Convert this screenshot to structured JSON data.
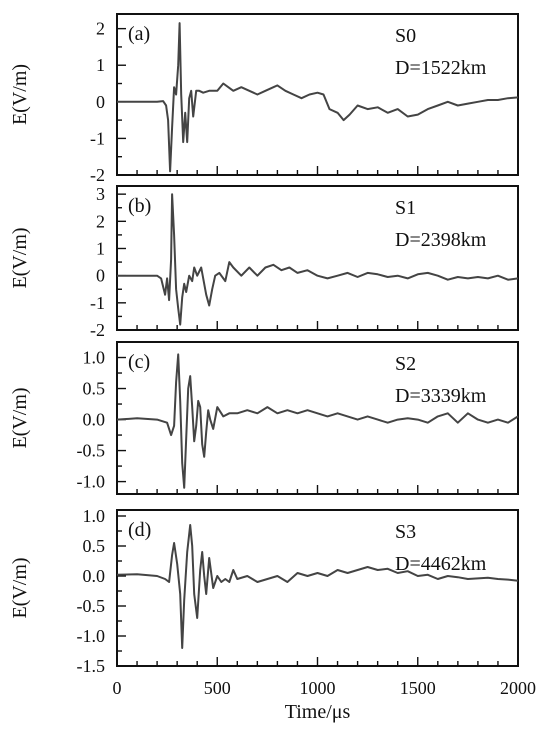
{
  "chart_data": [
    {
      "type": "line",
      "panel_label": "(a)",
      "station": "S0",
      "distance": "D=1522km",
      "ylabel": "E(V/m)",
      "ylim": [
        -2,
        2.4
      ],
      "yticks": [
        -2,
        -1,
        0,
        1,
        2
      ],
      "ytick_labels": [
        "-2",
        "-1",
        "0",
        "1",
        "2"
      ],
      "xlim": [
        0,
        2000
      ],
      "series": [
        {
          "x": [
            0,
            100,
            200,
            230,
            245,
            255,
            265,
            275,
            285,
            295,
            305,
            312,
            320,
            330,
            340,
            350,
            360,
            370,
            380,
            395,
            410,
            430,
            460,
            500,
            530,
            555,
            580,
            620,
            660,
            700,
            740,
            780,
            800,
            840,
            880,
            920,
            960,
            1000,
            1030,
            1060,
            1100,
            1130,
            1160,
            1200,
            1250,
            1300,
            1350,
            1400,
            1450,
            1500,
            1550,
            1600,
            1650,
            1700,
            1750,
            1800,
            1850,
            1900,
            1950,
            2000
          ],
          "y": [
            0,
            0,
            0,
            0.02,
            -0.1,
            -0.5,
            -1.9,
            -0.7,
            0.4,
            0.2,
            1.0,
            2.15,
            0.2,
            -1.1,
            -0.3,
            -1.1,
            0.1,
            0.3,
            -0.4,
            0.3,
            0.3,
            0.25,
            0.3,
            0.3,
            0.5,
            0.4,
            0.3,
            0.4,
            0.3,
            0.2,
            0.3,
            0.4,
            0.45,
            0.3,
            0.2,
            0.1,
            0.2,
            0.25,
            0.2,
            -0.2,
            -0.3,
            -0.5,
            -0.35,
            -0.1,
            -0.2,
            -0.15,
            -0.3,
            -0.2,
            -0.4,
            -0.35,
            -0.2,
            -0.1,
            0.0,
            -0.1,
            -0.05,
            0.0,
            0.05,
            0.05,
            0.1,
            0.12
          ]
        }
      ]
    },
    {
      "type": "line",
      "panel_label": "(b)",
      "station": "S1",
      "distance": "D=2398km",
      "ylabel": "E(V/m)",
      "ylim": [
        -2,
        3.3
      ],
      "yticks": [
        -2,
        -1,
        0,
        1,
        2,
        3
      ],
      "ytick_labels": [
        "-2",
        "-1",
        "0",
        "1",
        "2",
        "3"
      ],
      "xlim": [
        0,
        2000
      ],
      "series": [
        {
          "x": [
            0,
            100,
            200,
            220,
            240,
            250,
            260,
            270,
            275,
            285,
            295,
            305,
            315,
            325,
            335,
            345,
            360,
            375,
            385,
            400,
            420,
            445,
            460,
            475,
            490,
            510,
            540,
            560,
            580,
            620,
            660,
            700,
            740,
            780,
            820,
            860,
            900,
            950,
            1000,
            1050,
            1100,
            1150,
            1200,
            1250,
            1300,
            1350,
            1400,
            1450,
            1500,
            1550,
            1600,
            1650,
            1700,
            1750,
            1800,
            1850,
            1900,
            1950,
            2000
          ],
          "y": [
            0,
            0,
            0,
            -0.1,
            -0.7,
            -0.1,
            -0.9,
            0.6,
            3.0,
            1.5,
            -0.5,
            -1.2,
            -1.8,
            -0.8,
            -0.3,
            -0.6,
            0.0,
            -0.2,
            0.3,
            0.0,
            0.3,
            -0.7,
            -1.1,
            -0.5,
            0.0,
            0.1,
            -0.2,
            0.5,
            0.3,
            0.0,
            0.3,
            0.0,
            0.3,
            0.4,
            0.2,
            0.3,
            0.1,
            0.2,
            0.0,
            -0.1,
            0.0,
            0.1,
            -0.05,
            0.1,
            0.05,
            -0.05,
            0.0,
            -0.1,
            0.05,
            0.1,
            0.0,
            -0.15,
            -0.05,
            -0.1,
            -0.05,
            -0.1,
            0.0,
            -0.15,
            -0.1
          ]
        }
      ]
    },
    {
      "type": "line",
      "panel_label": "(c)",
      "station": "S2",
      "distance": "D=3339km",
      "ylabel": "E(V/m)",
      "ylim": [
        -1.2,
        1.25
      ],
      "yticks": [
        -1.0,
        -0.5,
        0.0,
        0.5,
        1.0
      ],
      "ytick_labels": [
        "-1.0",
        "-0.5",
        "0.0",
        "0.5",
        "1.0"
      ],
      "xlim": [
        0,
        2000
      ],
      "series": [
        {
          "x": [
            0,
            100,
            200,
            250,
            270,
            285,
            295,
            305,
            315,
            325,
            335,
            345,
            355,
            365,
            375,
            385,
            395,
            405,
            415,
            425,
            435,
            445,
            455,
            465,
            480,
            500,
            530,
            560,
            600,
            650,
            700,
            750,
            800,
            850,
            900,
            950,
            1000,
            1050,
            1100,
            1150,
            1200,
            1250,
            1300,
            1350,
            1400,
            1450,
            1500,
            1550,
            1600,
            1650,
            1700,
            1750,
            1800,
            1850,
            1900,
            1950,
            2000
          ],
          "y": [
            0,
            0.02,
            0,
            -0.05,
            -0.25,
            -0.1,
            0.6,
            1.05,
            0.3,
            -0.7,
            -1.1,
            -0.3,
            0.5,
            0.7,
            0.2,
            -0.35,
            -0.1,
            0.3,
            0.2,
            -0.4,
            -0.6,
            -0.2,
            0.15,
            0.0,
            -0.15,
            0.2,
            0.05,
            0.1,
            0.1,
            0.15,
            0.1,
            0.2,
            0.1,
            0.15,
            0.1,
            0.15,
            0.1,
            0.05,
            0.1,
            0.05,
            0.0,
            0.05,
            0.0,
            -0.05,
            0.0,
            0.02,
            0.0,
            -0.05,
            0.05,
            0.1,
            -0.05,
            0.1,
            0.0,
            -0.05,
            0.0,
            -0.05,
            0.05
          ]
        }
      ]
    },
    {
      "type": "line",
      "panel_label": "(d)",
      "station": "S3",
      "distance": "D=4462km",
      "ylabel": "E(V/m)",
      "ylim": [
        -1.5,
        1.1
      ],
      "yticks": [
        -1.5,
        -1.0,
        -0.5,
        0.0,
        0.5,
        1.0
      ],
      "ytick_labels": [
        "-1.5",
        "-1.0",
        "-0.5",
        "0.0",
        "0.5",
        "1.0"
      ],
      "xlim": [
        0,
        2000
      ],
      "xticks": [
        0,
        500,
        1000,
        1500,
        2000
      ],
      "xtick_labels": [
        "0",
        "500",
        "1000",
        "1500",
        "2000"
      ],
      "xlabel": "Time/μs",
      "series": [
        {
          "x": [
            0,
            100,
            200,
            240,
            260,
            275,
            285,
            300,
            315,
            325,
            335,
            350,
            365,
            375,
            385,
            400,
            415,
            425,
            435,
            445,
            460,
            480,
            500,
            520,
            540,
            560,
            580,
            600,
            650,
            700,
            750,
            800,
            850,
            900,
            950,
            1000,
            1050,
            1100,
            1150,
            1200,
            1250,
            1300,
            1350,
            1400,
            1450,
            1500,
            1550,
            1600,
            1650,
            1700,
            1750,
            1800,
            1850,
            1900,
            1950,
            2000
          ],
          "y": [
            0.02,
            0.03,
            0,
            -0.05,
            -0.1,
            0.35,
            0.55,
            0.2,
            -0.3,
            -1.2,
            -0.4,
            0.4,
            0.85,
            0.5,
            -0.3,
            -0.7,
            0.1,
            0.4,
            0.0,
            -0.3,
            0.3,
            -0.2,
            0.0,
            -0.1,
            -0.05,
            -0.1,
            0.1,
            -0.05,
            0.0,
            -0.1,
            -0.05,
            0.0,
            -0.1,
            0.05,
            0.0,
            0.05,
            0.0,
            0.1,
            0.05,
            0.1,
            0.15,
            0.1,
            0.12,
            0.05,
            0.08,
            0.0,
            0.02,
            -0.05,
            0.0,
            -0.02,
            -0.05,
            -0.04,
            -0.03,
            -0.05,
            -0.06,
            -0.08
          ]
        }
      ]
    }
  ]
}
